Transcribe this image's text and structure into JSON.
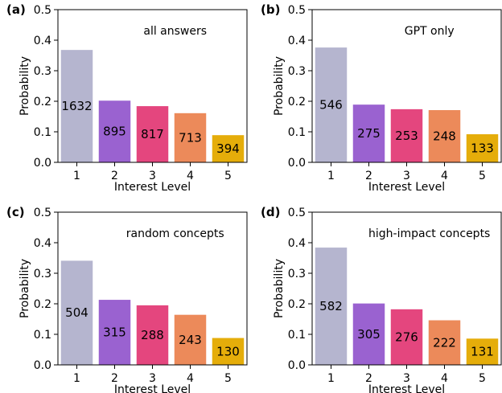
{
  "chart_data": [
    {
      "type": "bar",
      "panel": "(a)",
      "title": "all answers",
      "xlabel": "Interest Level",
      "ylabel": "Probability",
      "categories": [
        "1",
        "2",
        "3",
        "4",
        "5"
      ],
      "values": [
        0.368,
        0.202,
        0.184,
        0.161,
        0.089
      ],
      "counts": [
        "1632",
        "895",
        "817",
        "713",
        "394"
      ],
      "ylim": [
        0,
        0.5
      ],
      "yticks": [
        "0.0",
        "0.1",
        "0.2",
        "0.3",
        "0.4",
        "0.5"
      ],
      "colors": [
        "#b5b5cf",
        "#9a62d0",
        "#e4467e",
        "#ec8a5a",
        "#e5ad0a"
      ],
      "grid": false
    },
    {
      "type": "bar",
      "panel": "(b)",
      "title": "GPT only",
      "xlabel": "Interest Level",
      "ylabel": "Probability",
      "categories": [
        "1",
        "2",
        "3",
        "4",
        "5"
      ],
      "values": [
        0.376,
        0.189,
        0.174,
        0.171,
        0.092
      ],
      "counts": [
        "546",
        "275",
        "253",
        "248",
        "133"
      ],
      "ylim": [
        0,
        0.5
      ],
      "yticks": [
        "0.0",
        "0.1",
        "0.2",
        "0.3",
        "0.4",
        "0.5"
      ],
      "colors": [
        "#b5b5cf",
        "#9a62d0",
        "#e4467e",
        "#ec8a5a",
        "#e5ad0a"
      ],
      "grid": false
    },
    {
      "type": "bar",
      "panel": "(c)",
      "title": "random concepts",
      "xlabel": "Interest Level",
      "ylabel": "Probability",
      "categories": [
        "1",
        "2",
        "3",
        "4",
        "5"
      ],
      "values": [
        0.341,
        0.213,
        0.195,
        0.164,
        0.088
      ],
      "counts": [
        "504",
        "315",
        "288",
        "243",
        "130"
      ],
      "ylim": [
        0,
        0.5
      ],
      "yticks": [
        "0.0",
        "0.1",
        "0.2",
        "0.3",
        "0.4",
        "0.5"
      ],
      "colors": [
        "#b5b5cf",
        "#9a62d0",
        "#e4467e",
        "#ec8a5a",
        "#e5ad0a"
      ],
      "grid": false
    },
    {
      "type": "bar",
      "panel": "(d)",
      "title": "high-impact concepts",
      "xlabel": "Interest Level",
      "ylabel": "Probability",
      "categories": [
        "1",
        "2",
        "3",
        "4",
        "5"
      ],
      "values": [
        0.384,
        0.201,
        0.182,
        0.146,
        0.086
      ],
      "counts": [
        "582",
        "305",
        "276",
        "222",
        "131"
      ],
      "ylim": [
        0,
        0.5
      ],
      "yticks": [
        "0.0",
        "0.1",
        "0.2",
        "0.3",
        "0.4",
        "0.5"
      ],
      "colors": [
        "#b5b5cf",
        "#9a62d0",
        "#e4467e",
        "#ec8a5a",
        "#e5ad0a"
      ],
      "grid": false
    }
  ]
}
